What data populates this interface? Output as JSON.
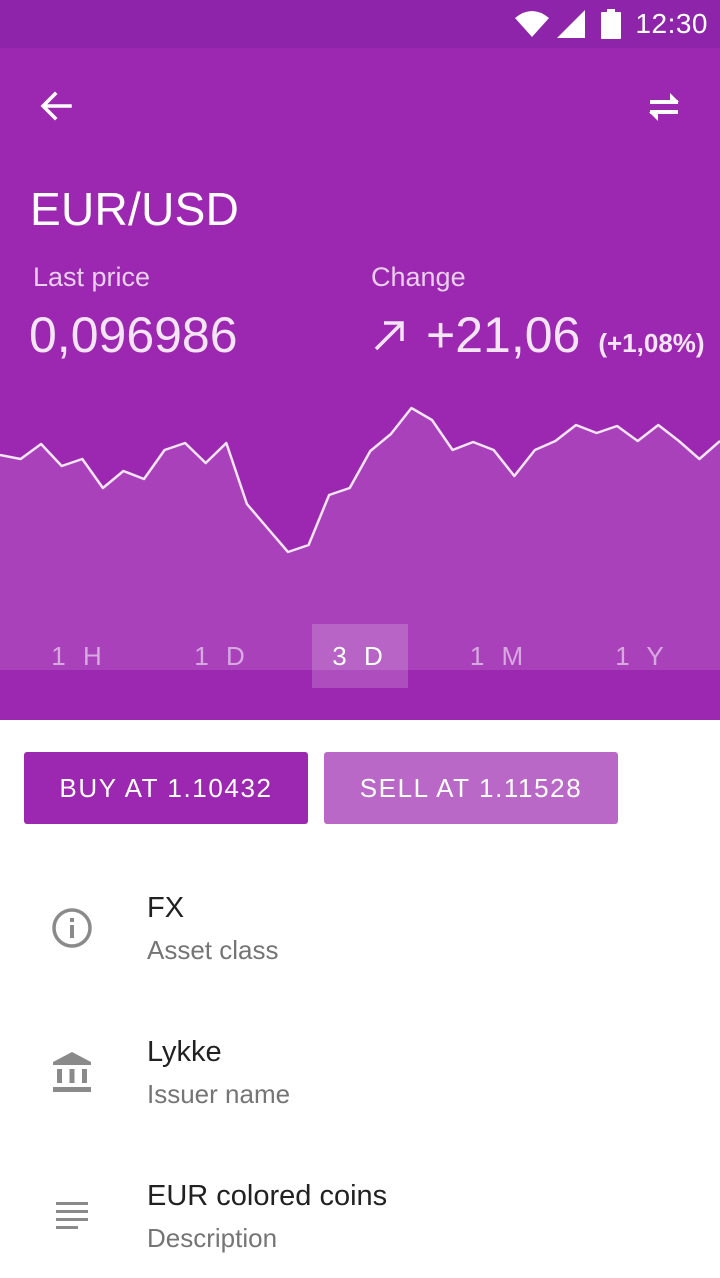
{
  "status_bar": {
    "time": "12:30",
    "icons": [
      "wifi-icon",
      "signal-icon",
      "battery-icon"
    ]
  },
  "toolbar": {
    "back_icon": "arrow-back-icon",
    "swap_icon": "swap-horiz-icon"
  },
  "asset": {
    "pair": "EUR/USD",
    "last_price_label": "Last price",
    "last_price": "0,096986",
    "change_label": "Change",
    "change_icon": "trending-up-arrow-icon",
    "change_value": "+21,06",
    "change_percent": "(+1,08%)"
  },
  "range_tabs": [
    {
      "label": "1 H",
      "active": false
    },
    {
      "label": "1 D",
      "active": false
    },
    {
      "label": "3 D",
      "active": true
    },
    {
      "label": "1 M",
      "active": false
    },
    {
      "label": "1 Y",
      "active": false
    }
  ],
  "actions": {
    "buy_label": "BUY AT 1.10432",
    "sell_label": "SELL AT 1.11528"
  },
  "info": [
    {
      "icon": "info-icon",
      "primary": "FX",
      "secondary": "Asset class"
    },
    {
      "icon": "bank-icon",
      "primary": "Lykke",
      "secondary": "Issuer name"
    },
    {
      "icon": "subject-lines-icon",
      "primary": "EUR colored coins",
      "secondary": "Description"
    }
  ],
  "colors": {
    "status_bar": "#8e24aa",
    "primary": "#9c27b0",
    "sell_button": "#ba68c8",
    "chart_fill": "#ab47bc"
  },
  "chart_data": {
    "type": "area",
    "values": [
      455,
      459,
      444,
      466,
      459,
      488,
      471,
      479,
      450,
      443,
      463,
      443,
      504,
      528,
      552,
      545,
      495,
      488,
      451,
      434,
      408,
      420,
      450,
      442,
      450,
      476,
      450,
      441,
      425,
      433,
      426,
      441,
      425,
      441,
      459,
      441
    ],
    "title": "",
    "xlabel": "",
    "ylabel": "",
    "grid": false
  }
}
